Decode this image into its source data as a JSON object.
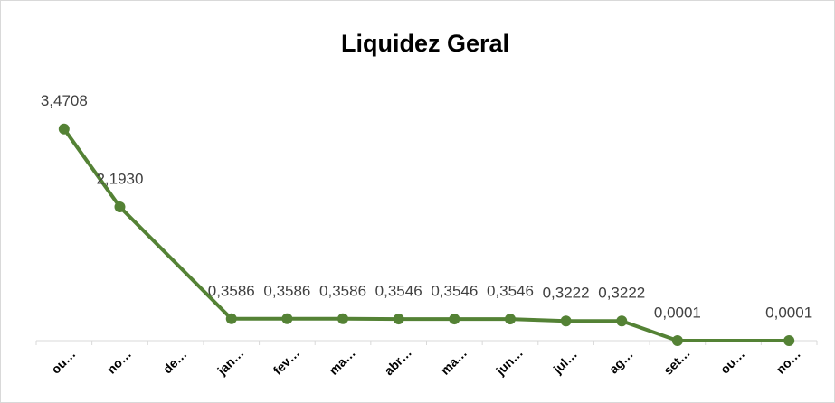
{
  "chart_data": {
    "type": "line",
    "title": "Liquidez Geral",
    "categories": [
      "ou…",
      "no…",
      "de…",
      "jan…",
      "fev…",
      "ma…",
      "abr…",
      "ma…",
      "jun…",
      "jul…",
      "ag…",
      "set…",
      "ou…",
      "no…"
    ],
    "series": [
      {
        "name": "Liquidez Geral",
        "color": "#548235",
        "values": [
          3.4708,
          2.193,
          null,
          0.3586,
          0.3586,
          0.3586,
          0.3546,
          0.3546,
          0.3546,
          0.3222,
          0.3222,
          0.0001,
          null,
          0.0001
        ],
        "value_labels": [
          "3,4708",
          "2,1930",
          null,
          "0,3586",
          "0,3586",
          "0,3586",
          "0,3546",
          "0,3546",
          "0,3546",
          "0,3222",
          "0,3222",
          "0,0001",
          null,
          "0,0001"
        ]
      }
    ],
    "ylim": [
      0,
      4
    ],
    "span_gaps": true
  }
}
